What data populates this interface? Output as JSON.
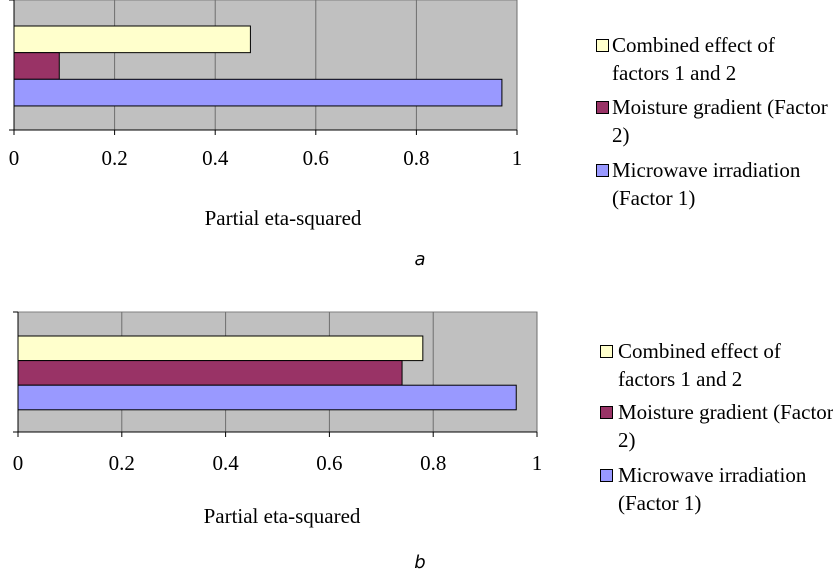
{
  "chart_data": [
    {
      "type": "bar",
      "orientation": "horizontal",
      "caption": "a",
      "xlabel": "Partial eta-squared",
      "categories": [
        null
      ],
      "series": [
        {
          "name": "Combined effect of factors 1 and 2",
          "color": "#ffffcc",
          "values": [
            0.47
          ]
        },
        {
          "name": "Moisture gradient (Factor 2)",
          "color": "#993366",
          "values": [
            0.09
          ]
        },
        {
          "name": "Microwave irradiation (Factor 1)",
          "color": "#9999ff",
          "values": [
            0.97
          ]
        }
      ],
      "xlim": [
        0,
        1
      ],
      "xticks": [
        0,
        0.2,
        0.4,
        0.6,
        0.8,
        1
      ],
      "grid": true,
      "legend": "right"
    },
    {
      "type": "bar",
      "orientation": "horizontal",
      "caption": "b",
      "xlabel": "Partial eta-squared",
      "categories": [
        null
      ],
      "series": [
        {
          "name": "Combined effect of factors 1 and 2",
          "color": "#ffffcc",
          "values": [
            0.78
          ]
        },
        {
          "name": "Moisture gradient (Factor 2)",
          "color": "#993366",
          "values": [
            0.74
          ]
        },
        {
          "name": "Microwave irradiation (Factor 1)",
          "color": "#9999ff",
          "values": [
            0.96
          ]
        }
      ],
      "xlim": [
        0,
        1
      ],
      "xticks": [
        0,
        0.2,
        0.4,
        0.6,
        0.8,
        1
      ],
      "grid": true,
      "legend": "right"
    }
  ]
}
